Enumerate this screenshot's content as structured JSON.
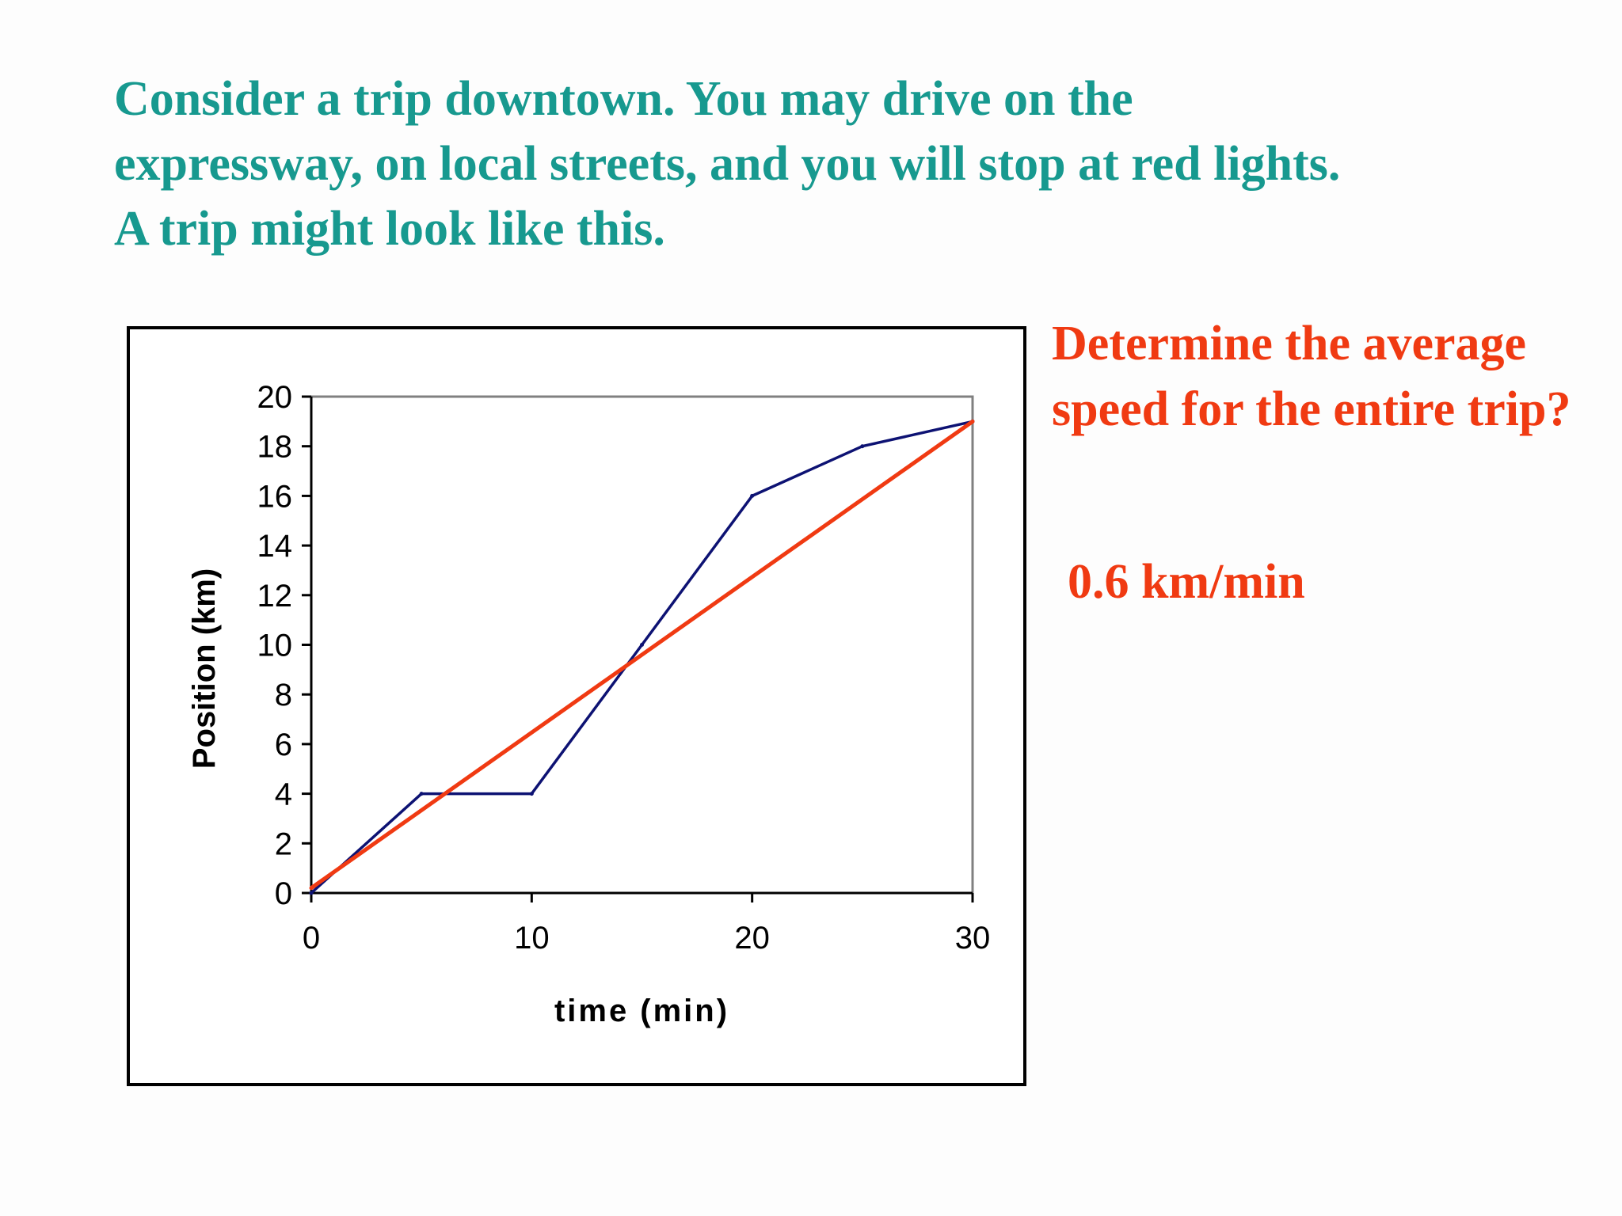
{
  "slide": {
    "intro_text": "Consider a trip downtown.  You may drive on the expressway, on local streets, and you will stop at red lights.  A trip might look like this.",
    "question_text": "Determine the average speed for the entire trip?",
    "answer_text": "0.6 km/min"
  },
  "colors": {
    "intro_text": "#17998f",
    "question_text": "#f03a12",
    "position_line": "#0d1273",
    "average_line": "#f03a12"
  },
  "chart_data": {
    "type": "line",
    "xlabel": "time (min)",
    "ylabel": "Position (km)",
    "xlim": [
      0,
      30
    ],
    "ylim": [
      0,
      20
    ],
    "xticks": [
      0,
      10,
      20,
      30
    ],
    "yticks": [
      0,
      2,
      4,
      6,
      8,
      10,
      12,
      14,
      16,
      18,
      20
    ],
    "grid": false,
    "legend": "none",
    "series": [
      {
        "x": [
          0,
          5,
          10,
          15,
          20,
          25,
          30
        ],
        "y": [
          0,
          4,
          4,
          10,
          16,
          18,
          19
        ]
      },
      {
        "x": [
          0,
          30
        ],
        "y": [
          0.2,
          19
        ]
      }
    ]
  }
}
